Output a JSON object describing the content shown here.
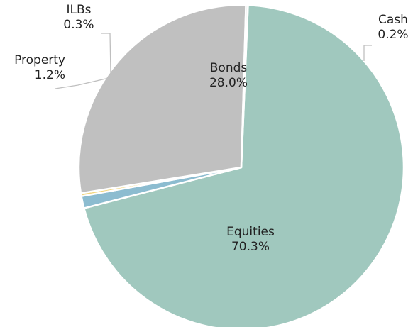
{
  "chart_data": {
    "type": "pie",
    "start_angle_deg": 2.37,
    "direction": "clockwise",
    "slices": [
      {
        "label": "Equities",
        "value": 70.3,
        "value_text": "70.3%",
        "color": "#a0c8be"
      },
      {
        "label": "Property",
        "value": 1.2,
        "value_text": "1.2%",
        "color": "#8cbcd0"
      },
      {
        "label": "ILBs",
        "value": 0.3,
        "value_text": "0.3%",
        "color": "#f2d680"
      },
      {
        "label": "Bonds",
        "value": 28.0,
        "value_text": "28.0%",
        "color": "#c0c0c0"
      },
      {
        "label": "Cash",
        "value": 0.2,
        "value_text": "0.2%",
        "color": "#d9d9d9"
      }
    ],
    "slice_border_color": "#ffffff",
    "leader_color": "#bfbfbf"
  }
}
